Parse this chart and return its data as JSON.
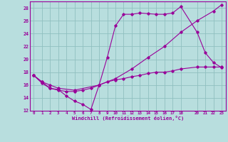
{
  "xlabel": "Windchill (Refroidissement éolien,°C)",
  "bg_color": "#b8dede",
  "grid_color": "#90c0c0",
  "line_color": "#990099",
  "xlim": [
    -0.5,
    23.5
  ],
  "ylim": [
    12,
    29
  ],
  "yticks": [
    12,
    14,
    16,
    18,
    20,
    22,
    24,
    26,
    28
  ],
  "xticks": [
    0,
    1,
    2,
    3,
    4,
    5,
    6,
    7,
    8,
    9,
    10,
    11,
    12,
    13,
    14,
    15,
    16,
    17,
    18,
    20,
    21,
    22,
    23
  ],
  "line1_x": [
    0,
    1,
    2,
    3,
    4,
    5,
    6,
    7,
    8,
    9,
    10,
    11,
    12,
    13,
    14,
    15,
    16,
    17,
    18,
    20,
    21,
    22,
    23
  ],
  "line1_y": [
    17.5,
    16.5,
    15.5,
    15.3,
    14.3,
    13.5,
    13.0,
    12.2,
    16.0,
    20.3,
    25.2,
    27.0,
    27.0,
    27.2,
    27.1,
    27.0,
    27.0,
    27.2,
    28.2,
    24.2,
    21.0,
    19.5,
    18.7
  ],
  "line2_x": [
    0,
    1,
    2,
    3,
    4,
    5,
    6,
    7,
    8,
    9,
    10,
    11,
    12,
    13,
    14,
    15,
    16,
    17,
    18,
    20,
    21,
    22,
    23
  ],
  "line2_y": [
    17.5,
    16.3,
    15.5,
    15.2,
    15.0,
    15.0,
    15.2,
    15.5,
    16.0,
    16.5,
    16.8,
    17.0,
    17.3,
    17.5,
    17.8,
    18.0,
    18.0,
    18.2,
    18.5,
    18.8,
    18.8,
    18.8,
    18.8
  ],
  "line3_x": [
    0,
    1,
    2,
    3,
    5,
    8,
    10,
    12,
    14,
    16,
    18,
    20,
    22,
    23
  ],
  "line3_y": [
    17.5,
    16.5,
    16.0,
    15.5,
    15.2,
    16.0,
    17.0,
    18.5,
    20.3,
    22.0,
    24.2,
    26.0,
    27.5,
    28.5
  ]
}
